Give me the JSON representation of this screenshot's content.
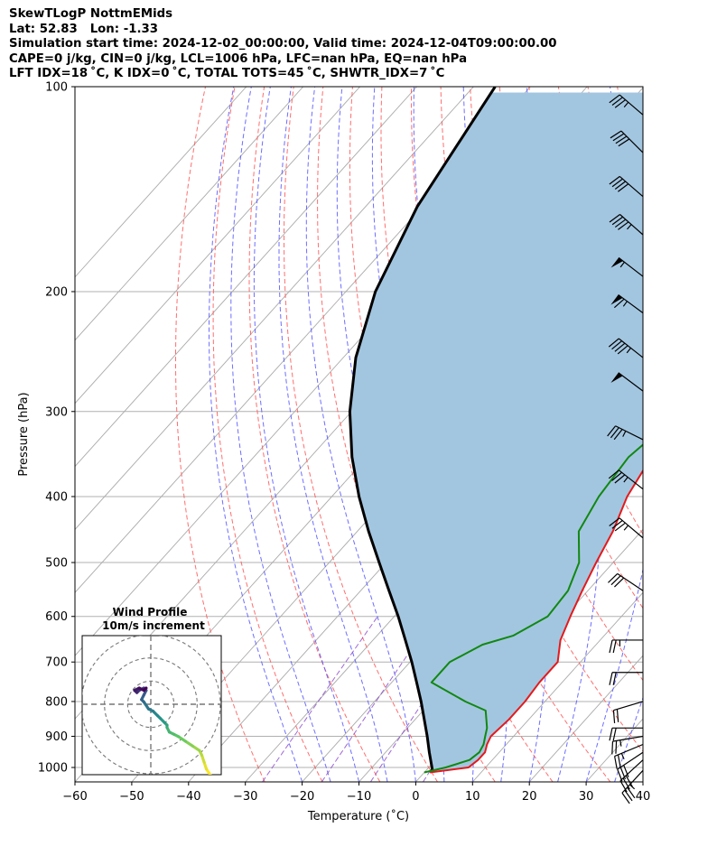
{
  "title_lines": [
    "SkewTLogP NottmEMids",
    "Lat: 52.83   Lon: -1.33",
    "Simulation start time: 2024-12-02_00:00:00, Valid time: 2024-12-04T09:00:00.00",
    "CAPE=0 j/kg, CIN=0 j/kg, LCL=1006 hPa, LFC=nan hPa, EQ=nan hPa",
    "LFT IDX=18$^\\circ$C, K IDX=0$^\\circ$C, TOTAL TOTS=45$^\\circ$C, SHWTR_IDX=7$^\\circ$C"
  ],
  "title_lines_display": [
    "SkewTLogP NottmEMids",
    "Lat: 52.83   Lon: -1.33",
    "Simulation start time: 2024-12-02_00:00:00, Valid time: 2024-12-04T09:00:00.00",
    "CAPE=0 j/kg, CIN=0 j/kg, LCL=1006 hPa, LFC=nan hPa, EQ=nan hPa",
    "LFT IDX=18 ˚C, K IDX=0 ˚C, TOTAL TOTS=45 ˚C, SHWTR_IDX=7 ˚C"
  ],
  "chart_data": {
    "type": "line",
    "subtype": "skew-T log-P",
    "xlabel": "Temperature ($^\\circ$C)",
    "xlabel_display": "Temperature (˚C)",
    "ylabel": "Pressure (hPa)",
    "xlim": [
      -60,
      40
    ],
    "ylim": [
      1050,
      100
    ],
    "y_scale": "log",
    "x_ticks": [
      -60,
      -50,
      -40,
      -30,
      -20,
      -10,
      0,
      10,
      20,
      30,
      40
    ],
    "x_tick_labels": [
      "−60",
      "−50",
      "−40",
      "−30",
      "−20",
      "−10",
      "0",
      "10",
      "20",
      "30",
      "40"
    ],
    "y_ticks": [
      1000,
      900,
      800,
      700,
      600,
      500,
      400,
      300,
      200,
      100
    ],
    "y_tick_labels": [
      "1000",
      "900",
      "800",
      "700",
      "600",
      "500",
      "400",
      "300",
      "200",
      "100"
    ],
    "grid": true,
    "colors": {
      "temperature": "#e41a1c",
      "dewpoint": "#118811",
      "parcel": "#000000",
      "shade": "#a3c6e0",
      "dry_adiabats": "#ff5555",
      "moist_adiabats": "#5555ff",
      "mixing_ratio": "#8844cc",
      "isotherms": "#999999"
    },
    "series": [
      {
        "name": "temperature",
        "p": [
          1017,
          1000,
          975,
          950,
          925,
          900,
          850,
          800,
          750,
          700,
          650,
          600,
          550,
          500,
          450,
          400,
          350,
          300,
          270,
          250,
          230,
          210,
          200,
          190,
          175,
          160,
          140,
          120,
          100
        ],
        "t": [
          1,
          7,
          7.5,
          7.5,
          6.6,
          6,
          6.5,
          6.5,
          6.0,
          6,
          3,
          1,
          -1,
          -3,
          -5,
          -8,
          -10,
          -13,
          -14,
          -14,
          -14,
          -14,
          -13,
          -11,
          -8,
          -5,
          -3,
          1,
          9
        ]
      },
      {
        "name": "dewpoint",
        "p": [
          1017,
          1000,
          975,
          950,
          925,
          900,
          875,
          825,
          800,
          750,
          700,
          660,
          640,
          600,
          550,
          500,
          450,
          400,
          350,
          325,
          290,
          250,
          200,
          175,
          160,
          140,
          120,
          100
        ],
        "t": [
          0,
          3,
          6,
          6.5,
          6.0,
          5,
          4,
          1,
          -4,
          -13,
          -13,
          -10,
          -6,
          -3,
          -3.5,
          -6,
          -11,
          -13,
          -14,
          -13,
          -12,
          -10,
          -7,
          -6,
          -4,
          -5,
          -2,
          6
        ]
      },
      {
        "name": "parcel",
        "p": [
          1017,
          1006,
          950,
          900,
          850,
          800,
          750,
          700,
          650,
          600,
          550,
          500,
          450,
          400,
          350,
          300,
          250,
          200,
          150,
          100
        ],
        "t": [
          1.0,
          0.9,
          -2.3,
          -5.2,
          -8.4,
          -11.8,
          -15.6,
          -19.7,
          -24.3,
          -29.3,
          -35.0,
          -41.2,
          -48.0,
          -55.2,
          -62.7,
          -70.3,
          -77.8,
          -84.8,
          -90.9,
          -96.2
        ]
      }
    ],
    "wind_barbs": [
      {
        "p": 1010,
        "u": 12,
        "v": 13
      },
      {
        "p": 975,
        "u": 12,
        "v": 11
      },
      {
        "p": 950,
        "u": 12,
        "v": 8
      },
      {
        "p": 925,
        "u": 12,
        "v": 5
      },
      {
        "p": 900,
        "u": 12,
        "v": 2
      },
      {
        "p": 875,
        "u": 11,
        "v": 0
      },
      {
        "p": 800,
        "u": 10,
        "v": 3
      },
      {
        "p": 725,
        "u": 11,
        "v": 0
      },
      {
        "p": 650,
        "u": 12,
        "v": 0
      },
      {
        "p": 550,
        "u": 12,
        "v": -8
      },
      {
        "p": 460,
        "u": 13,
        "v": -11
      },
      {
        "p": 390,
        "u": 14,
        "v": -11
      },
      {
        "p": 330,
        "u": 16,
        "v": -8
      },
      {
        "p": 280,
        "u": 20,
        "v": -15
      },
      {
        "p": 250,
        "u": 19,
        "v": -15
      },
      {
        "p": 215,
        "u": 27,
        "v": -20
      },
      {
        "p": 190,
        "u": 22,
        "v": -17
      },
      {
        "p": 165,
        "u": 17,
        "v": -15
      },
      {
        "p": 145,
        "u": 15,
        "v": -13
      },
      {
        "p": 125,
        "u": 15,
        "v": -15
      },
      {
        "p": 110,
        "u": 14,
        "v": -12
      }
    ],
    "hodograph": {
      "title": "Wind Profile",
      "subtitle": "10m/s increment",
      "ring_radii": [
        10,
        20,
        30
      ],
      "limit": 30,
      "u": [
        26,
        24,
        23,
        22,
        21,
        18,
        15,
        12,
        10,
        8,
        7,
        7,
        6,
        4,
        3,
        1,
        -1,
        -3,
        -4,
        -3,
        -2,
        -3,
        -5,
        -6,
        -7,
        -5,
        -3,
        -2
      ],
      "v": [
        -31,
        -28,
        -25,
        -22,
        -20,
        -18,
        -16,
        -14,
        -13,
        -12,
        -10,
        -9,
        -8,
        -6,
        -5,
        -3,
        -2,
        1,
        2,
        4,
        6,
        7,
        6,
        5,
        6,
        7,
        6,
        7
      ]
    }
  }
}
